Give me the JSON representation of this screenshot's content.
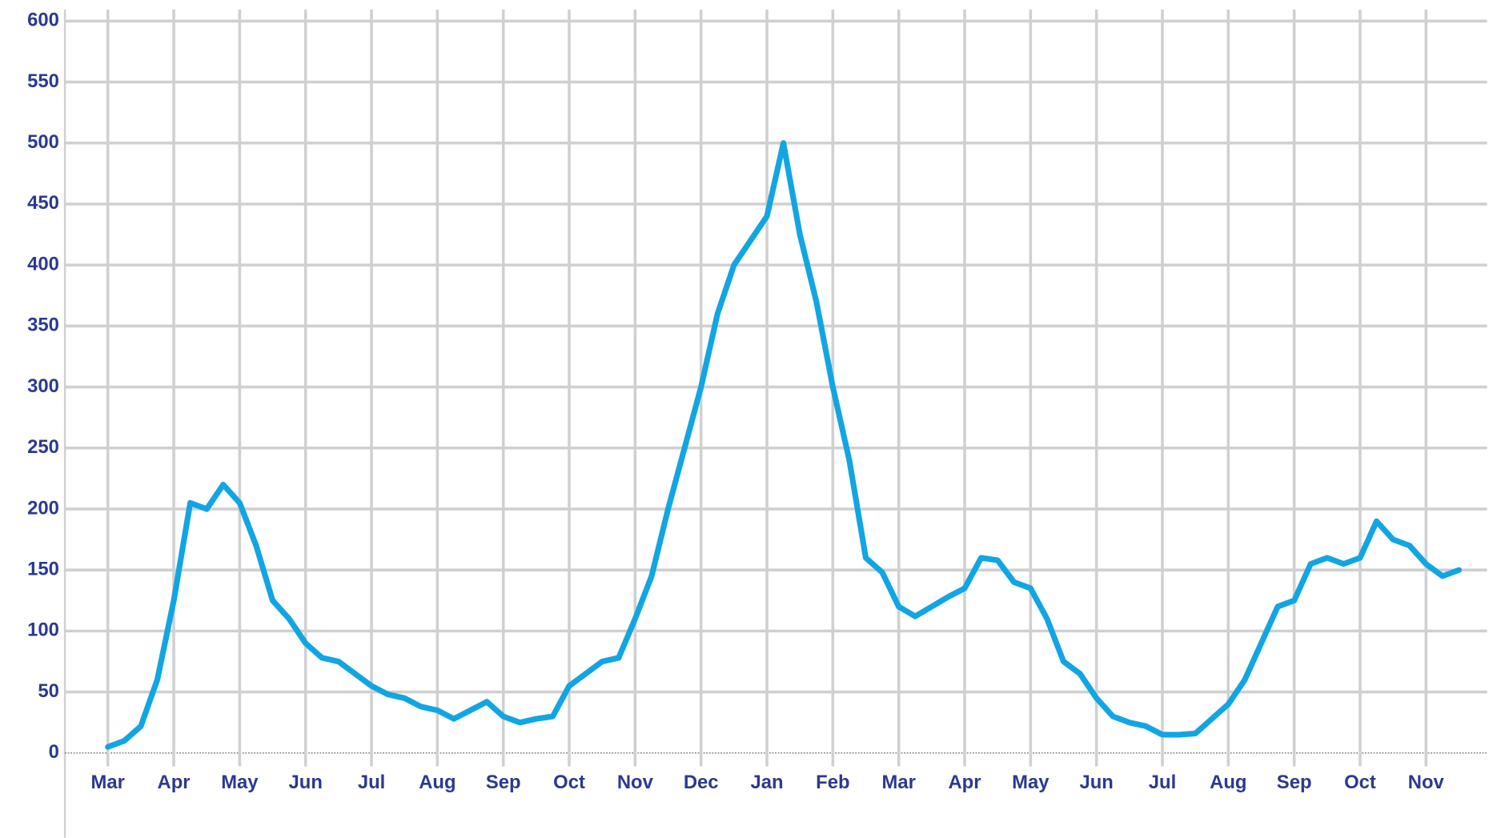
{
  "chart_data": {
    "type": "line",
    "categories": [
      "Mar",
      null,
      null,
      null,
      "Apr",
      null,
      null,
      null,
      "May",
      null,
      null,
      null,
      "Jun",
      null,
      null,
      null,
      "Jul",
      null,
      null,
      null,
      "Aug",
      null,
      null,
      null,
      "Sep",
      null,
      null,
      null,
      "Oct",
      null,
      null,
      null,
      "Nov",
      null,
      null,
      null,
      "Dec",
      null,
      null,
      null,
      "Jan",
      null,
      null,
      null,
      "Feb",
      null,
      null,
      null,
      "Mar",
      null,
      null,
      null,
      "Apr",
      null,
      null,
      null,
      "May",
      null,
      null,
      null,
      "Jun",
      null,
      null,
      null,
      "Jul",
      null,
      null,
      null,
      "Aug",
      null,
      null,
      null,
      "Sep",
      null,
      null,
      null,
      "Oct",
      null,
      null,
      null,
      "Nov",
      null,
      null
    ],
    "values": [
      5,
      10,
      22,
      60,
      125,
      205,
      200,
      220,
      205,
      170,
      125,
      110,
      90,
      78,
      75,
      65,
      55,
      48,
      45,
      38,
      35,
      28,
      35,
      42,
      30,
      25,
      28,
      30,
      55,
      65,
      75,
      78,
      110,
      145,
      200,
      250,
      300,
      360,
      400,
      420,
      440,
      500,
      425,
      370,
      300,
      240,
      160,
      148,
      120,
      112,
      120,
      128,
      135,
      160,
      158,
      140,
      135,
      110,
      75,
      65,
      45,
      30,
      25,
      22,
      15,
      15,
      16,
      28,
      40,
      60,
      90,
      120,
      125,
      155,
      160,
      155,
      160,
      190,
      175,
      170,
      155,
      145,
      150
    ],
    "color": "#12a5e3",
    "ylim": [
      0,
      600
    ],
    "yticks": [
      0,
      50,
      100,
      150,
      200,
      250,
      300,
      350,
      400,
      450,
      500,
      550,
      600
    ],
    "grid": true
  }
}
